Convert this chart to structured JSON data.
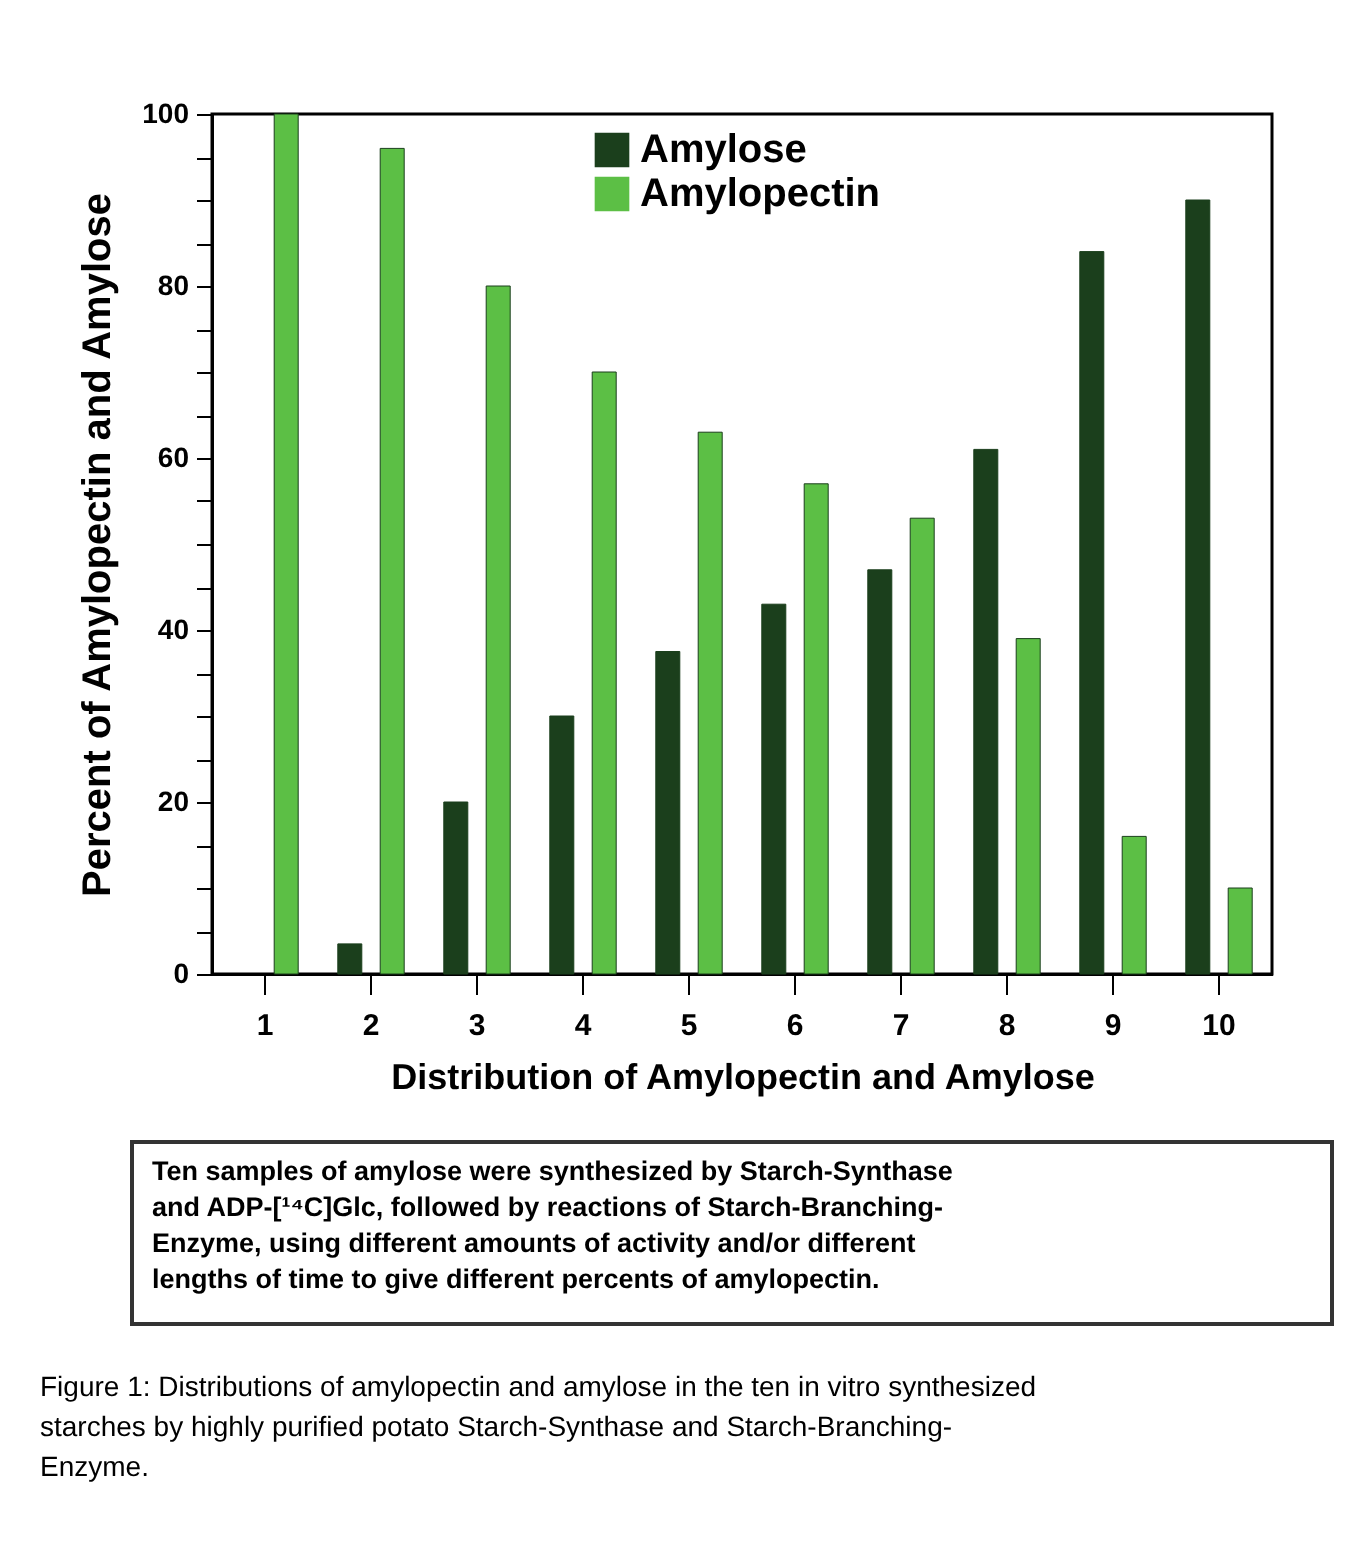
{
  "chart_data": {
    "type": "bar",
    "xlabel": "Distribution of Amylopectin and Amylose",
    "ylabel": "Percent of Amylopectin and Amylose",
    "categories": [
      "1",
      "2",
      "3",
      "4",
      "5",
      "6",
      "7",
      "8",
      "9",
      "10"
    ],
    "series": [
      {
        "name": "Amylose",
        "color": "#1b3f1c",
        "values": [
          null,
          3.5,
          20,
          30,
          37.5,
          43,
          47,
          61,
          84,
          90
        ]
      },
      {
        "name": "Amylopectin",
        "color": "#5cbf45",
        "values": [
          100,
          96,
          80,
          70,
          63,
          57,
          53,
          39,
          16,
          10
        ]
      }
    ],
    "ylim": [
      0,
      100
    ],
    "yticks": [
      0,
      {
        "value": 5,
        "label": null
      },
      {
        "value": 10,
        "label": null
      },
      {
        "value": 15,
        "label": null
      },
      20,
      {
        "value": 25,
        "label": null
      },
      {
        "value": 30,
        "label": null
      },
      {
        "value": 35,
        "label": null
      },
      40,
      {
        "value": 45,
        "label": null
      },
      {
        "value": 50,
        "label": null
      },
      {
        "value": 55,
        "label": null
      },
      60,
      {
        "value": 65,
        "label": null
      },
      {
        "value": 70,
        "label": null
      },
      {
        "value": 75,
        "label": null
      },
      80,
      {
        "value": 85,
        "label": null
      },
      {
        "value": 90,
        "label": null
      },
      {
        "value": 95,
        "label": null
      },
      100
    ],
    "legend": "top right",
    "grid": false,
    "annotations": [
      "Ten samples of amylose were synthesized by Starch-Synthase\nand ADP-[¹⁴C]Glc, followed by reactions of Starch-Branching-\nEnzyme, using different amounts of activity and/or different\nlengths of time to give different percents of amylopectin.",
      "Figure 1: Distributions of amylopectin and amylose in the ten in vitro synthesized\nstarches by highly purified potato Starch-Synthase and Starch-Branching-\nEnzyme."
    ]
  }
}
